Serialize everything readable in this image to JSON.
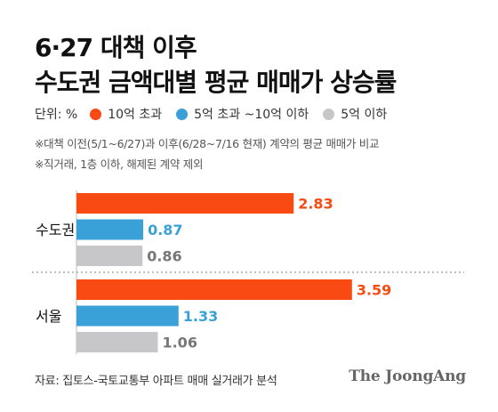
{
  "title_line1": "6·27 대책 이후",
  "title_line2": "수도권 금액대별 평균 매매가 상승률",
  "legend": {
    "unit": "단위: %",
    "items": [
      {
        "label": "10억 초과",
        "color": "#fa4a14"
      },
      {
        "label": "5억 초과 ~10억 이하",
        "color": "#3aa0d8"
      },
      {
        "label": "5억 이하",
        "color": "#c7c7c9"
      }
    ]
  },
  "notes": [
    "※대책 이전(5/1~6/27)과 이후(6/28~7/16 현재) 계약의 평균 매매가 비교",
    "※직거래, 1층 이하, 해제된 계약 제외"
  ],
  "source": "자료: 집토스-국토교통부 아파트 매매 실거래가 분석",
  "brand": "The JoongAng",
  "chart_data": {
    "type": "bar",
    "orientation": "horizontal",
    "categories": [
      "수도권",
      "서울"
    ],
    "series": [
      {
        "name": "10억 초과",
        "color": "#fa4a14",
        "values": [
          2.83,
          3.59
        ]
      },
      {
        "name": "5억 초과 ~10억 이하",
        "color": "#3aa0d8",
        "values": [
          0.87,
          1.33
        ]
      },
      {
        "name": "5억 이하",
        "color": "#c7c7c9",
        "values": [
          0.86,
          1.06
        ]
      }
    ],
    "value_labels": [
      [
        "2.83",
        "0.87",
        "0.86"
      ],
      [
        "3.59",
        "1.33",
        "1.06"
      ]
    ]
  }
}
